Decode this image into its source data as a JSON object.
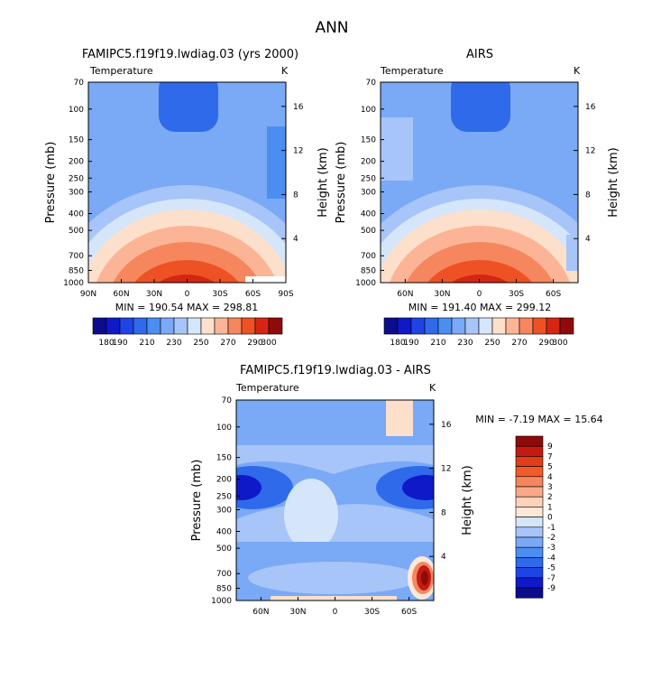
{
  "title": "ANN",
  "chart_data": [
    {
      "type": "heatmap",
      "title": "FAMIPC5.f19f19.lwdiag.03 (yrs 2000)",
      "subtitle_left": "Temperature",
      "subtitle_right": "K",
      "ylabel_left": "Pressure (mb)",
      "ylabel_right": "Height (km)",
      "xticks": [
        "90N",
        "60N",
        "30N",
        "0",
        "30S",
        "60S",
        "90S"
      ],
      "xlim": [
        90,
        -90
      ],
      "pressure_ticks": [
        70,
        100,
        150,
        200,
        250,
        300,
        400,
        500,
        700,
        850,
        1000
      ],
      "height_ticks": [
        4,
        8,
        12,
        16
      ],
      "stats": "MIN = 190.54   MAX = 298.81",
      "min": 190.54,
      "max": 298.81,
      "colorbar_levels": [
        180,
        190,
        200,
        210,
        220,
        230,
        240,
        250,
        260,
        270,
        280,
        290,
        300
      ],
      "colorbar_labels": [
        "180",
        "190",
        "210",
        "230",
        "250",
        "270",
        "290",
        "300"
      ]
    },
    {
      "type": "heatmap",
      "title": "AIRS",
      "subtitle_left": "Temperature",
      "subtitle_right": "K",
      "ylabel_left": "Pressure (mb)",
      "ylabel_right": "Height (km)",
      "xticks": [
        "60N",
        "30N",
        "0",
        "30S",
        "60S"
      ],
      "xlim": [
        80,
        -80
      ],
      "pressure_ticks": [
        70,
        100,
        150,
        200,
        250,
        300,
        400,
        500,
        700,
        850,
        1000
      ],
      "height_ticks": [
        4,
        8,
        12,
        16
      ],
      "stats": "MIN = 191.40   MAX = 299.12",
      "min": 191.4,
      "max": 299.12,
      "colorbar_levels": [
        180,
        190,
        200,
        210,
        220,
        230,
        240,
        250,
        260,
        270,
        280,
        290,
        300
      ],
      "colorbar_labels": [
        "180",
        "190",
        "210",
        "230",
        "250",
        "270",
        "290",
        "300"
      ]
    },
    {
      "type": "heatmap",
      "title": "FAMIPC5.f19f19.lwdiag.03 - AIRS",
      "subtitle_left": "Temperature",
      "subtitle_right": "K",
      "ylabel_left": "Pressure (mb)",
      "ylabel_right": "Height (km)",
      "xticks": [
        "60N",
        "30N",
        "0",
        "30S",
        "60S"
      ],
      "xlim": [
        80,
        -80
      ],
      "pressure_ticks": [
        70,
        100,
        150,
        200,
        250,
        300,
        400,
        500,
        700,
        850,
        1000
      ],
      "height_ticks": [
        4,
        8,
        12,
        16
      ],
      "stats": "MIN =   -7.19   MAX =  15.64",
      "min": -7.19,
      "max": 15.64,
      "colorbar_labels": [
        "9",
        "7",
        "5",
        "4",
        "3",
        "2",
        "1",
        "0",
        "-1",
        "-2",
        "-3",
        "-4",
        "-5",
        "-7",
        "-9"
      ]
    }
  ],
  "colors": {
    "temp_palette": [
      "#0c0c8e",
      "#0f19c8",
      "#1f44e6",
      "#2f6aeb",
      "#4b8ef2",
      "#7aa9f5",
      "#a7c5f8",
      "#d5e6fb",
      "#fde0cb",
      "#fbb596",
      "#f6865d",
      "#ee5224",
      "#d42613",
      "#8f0b0b"
    ],
    "diff_palette": [
      "#8f0b0b",
      "#c41a12",
      "#e23d18",
      "#f25a2a",
      "#f6865d",
      "#f9a98a",
      "#fcd2bb",
      "#fde8d8",
      "#d5e6fb",
      "#a7c5f8",
      "#7aa9f5",
      "#4b8ef2",
      "#2f6aeb",
      "#1f44e6",
      "#0f19c8",
      "#0c0c8e"
    ]
  }
}
